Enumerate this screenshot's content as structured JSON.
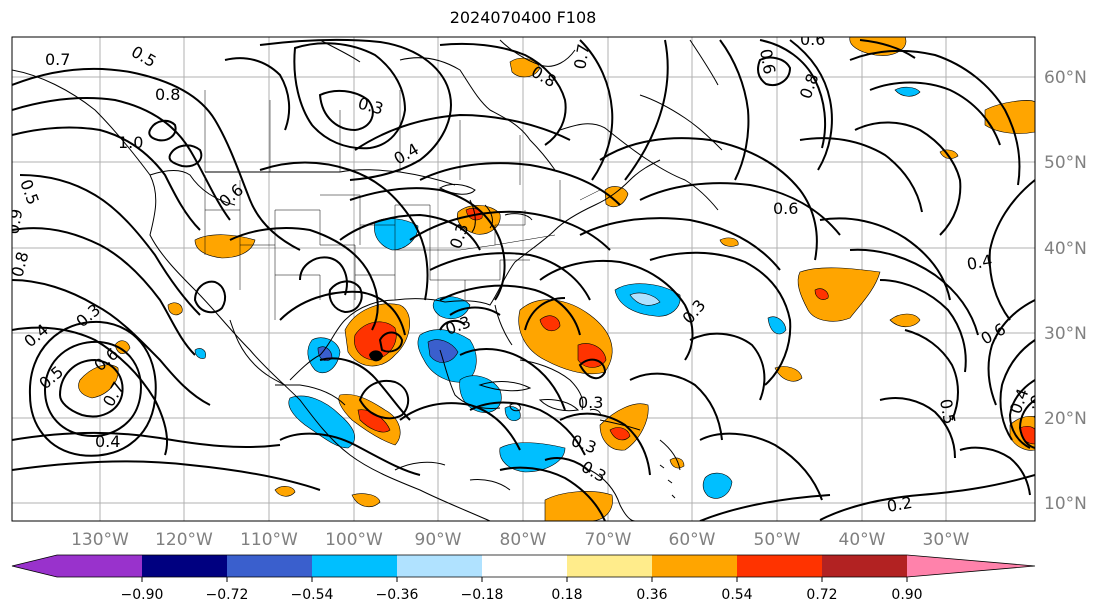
{
  "title": "2024070400 F108",
  "longitude_labels": [
    "130°W",
    "120°W",
    "110°W",
    "100°W",
    "90°W",
    "80°W",
    "70°W",
    "60°W",
    "50°W",
    "40°W",
    "30°W"
  ],
  "latitude_labels": [
    "60°N",
    "50°N",
    "40°N",
    "30°N",
    "20°N",
    "10°N"
  ],
  "contour_labels": [
    "0.7",
    "0.5",
    "0.8",
    "1.0",
    "0.3",
    "0.4",
    "0.6",
    "0.8",
    "0.9",
    "0.5",
    "0.8",
    "0.7",
    "0.6",
    "0.8",
    "0.6",
    "0.4",
    "0.3",
    "0.4",
    "0.3",
    "0.5",
    "0.6",
    "0.7",
    "0.4",
    "0.3",
    "0.3",
    "0.3",
    "0.3",
    "0.6",
    "0.4",
    "0.3",
    "0.6",
    "0.5",
    "0.4",
    "0.2"
  ],
  "colorbar": {
    "colors": [
      "#9932cc",
      "#000080",
      "#3a5fcd",
      "#00bfff",
      "#b0e2ff",
      "#ffffff",
      "#ffec8b",
      "#ffa500",
      "#ff3300",
      "#b22222",
      "#ff82ab"
    ],
    "labels": [
      "−0.90",
      "−0.72",
      "−0.54",
      "−0.36",
      "−0.18",
      "0.18",
      "0.36",
      "0.54",
      "0.72",
      "0.90"
    ]
  }
}
